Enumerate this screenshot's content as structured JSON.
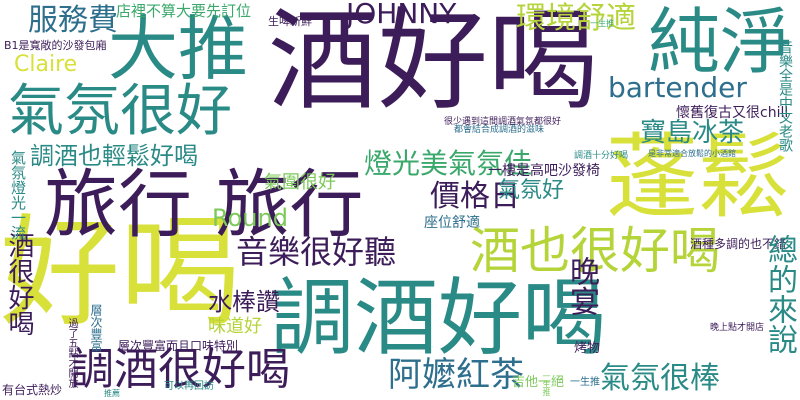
{
  "palette": {
    "dark_purple": "#3d1d59",
    "teal": "#2a8a86",
    "blue_teal": "#2e6f8e",
    "green": "#3aa86b",
    "lime": "#b5d43a",
    "yellow_green": "#d8e03a",
    "light_green": "#7cc95a"
  },
  "words": {
    "w01": "酒好喝",
    "w02": "好喝",
    "w03": "調酒好喝",
    "w04": "旅行 旅行",
    "w05": "蓬鬆",
    "w06": "大推",
    "w07": "氣氛很好",
    "w08": "純淨",
    "w09": "酒也很好喝",
    "w10": "調酒很好喝",
    "w11": "服務費",
    "w12": "JOHNNY",
    "w13": "環境舒適",
    "w14": "bartender",
    "w15": "燈光美氣氛佳",
    "w16": "音樂很好聽",
    "w17": "寶島冰茶",
    "w18": "Round",
    "w19": "價格日",
    "w20": "Claire",
    "w21": "調酒也輕鬆好喝",
    "w22": "阿嬤紅茶",
    "w23": "氣氛很棒",
    "w24": "水棒讚",
    "w25": "酒很好喝",
    "w26": "晚宴",
    "w27": "總的來說",
    "w28": "氣氛好",
    "w29": "味道好",
    "w30": "店裡不算大要先訂位",
    "w31": "生啤新鮮",
    "w32": "懷舊復古又很chill",
    "w33": "B1是寬敞的沙發包廂",
    "w34": "氣氛燈光一流",
    "w35": "氣圍很好",
    "w36": "一樓是高吧沙發椅",
    "w37": "座位舒適",
    "w38": "酒種多調的也不錯",
    "w39": "音樂全是中文老歌",
    "w40": "有台式熱炒",
    "w41": "層次豐富而且口味特別",
    "w42": "吉他一絕",
    "w43": "烤物",
    "w44": "一生推",
    "w45": "可以再回訪",
    "w46": "都會結合成調酒的滋味",
    "w47": "很少遇到這間調酒氣氛都很好",
    "w48": "調酒十分好喝",
    "w49": "是非常適合放鬆的小酒館",
    "w50": "推薦",
    "w51": "一生推",
    "w52": "過了五點才開放",
    "w53": "層次豐富",
    "w54": "一生推",
    "w55": "晚上點才開店"
  }
}
